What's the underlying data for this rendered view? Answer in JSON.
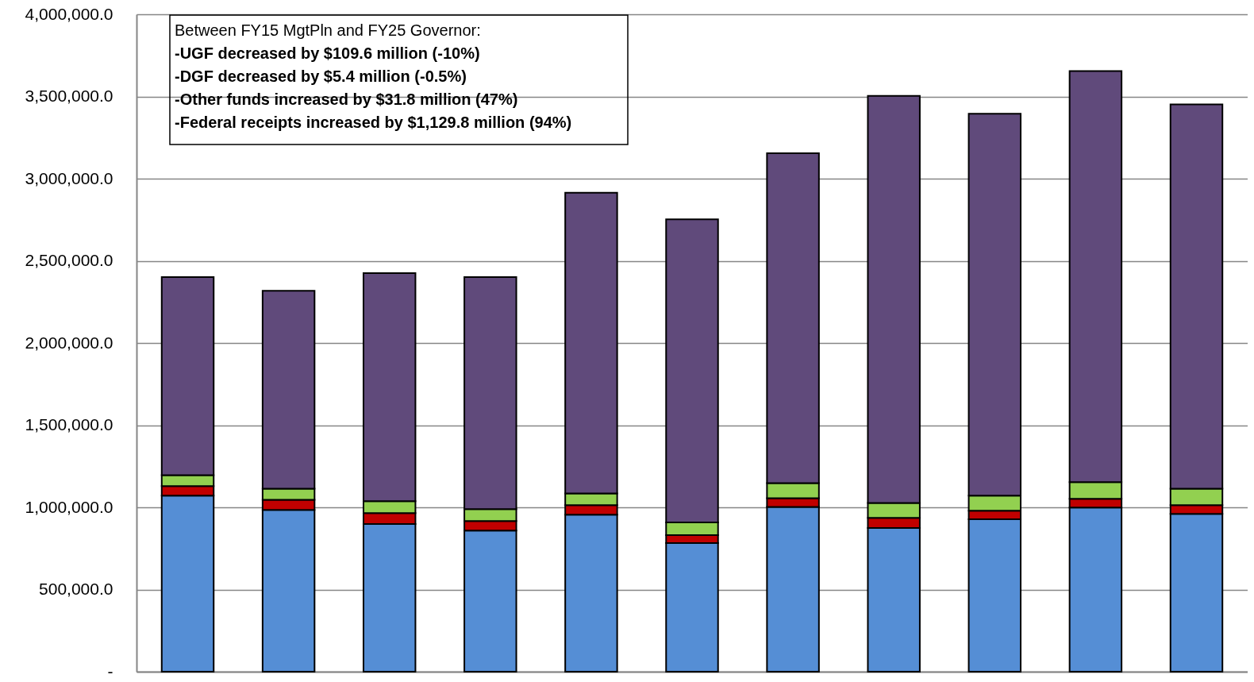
{
  "chart_data": {
    "type": "bar",
    "stacked": true,
    "categories": [
      null,
      null,
      null,
      null,
      null,
      null,
      null,
      null,
      null,
      null,
      null
    ],
    "series": [
      {
        "color": "#558ed5",
        "values": [
          1071000,
          984000,
          898000,
          859000,
          955000,
          783000,
          1003000,
          874000,
          927000,
          999000,
          960000
        ]
      },
      {
        "color": "#c00000",
        "values": [
          58000,
          62000,
          67000,
          58000,
          58000,
          48000,
          53000,
          62000,
          53000,
          53000,
          53000
        ]
      },
      {
        "color": "#92d050",
        "values": [
          67000,
          67000,
          72000,
          72000,
          72000,
          77000,
          91000,
          91000,
          91000,
          101000,
          101000
        ]
      },
      {
        "color": "#604a7b",
        "values": [
          1205000,
          1205000,
          1388000,
          1412000,
          1829000,
          1844000,
          2007000,
          2477000,
          2324000,
          2501000,
          2338000
        ]
      }
    ],
    "ylim": [
      0,
      4000000
    ],
    "yticks": [
      {
        "value": 0,
        "label": "-"
      },
      {
        "value": 500000,
        "label": "500,000.0"
      },
      {
        "value": 1000000,
        "label": "1,000,000.0"
      },
      {
        "value": 1500000,
        "label": "1,500,000.0"
      },
      {
        "value": 2000000,
        "label": "2,000,000.0"
      },
      {
        "value": 2500000,
        "label": "2,500,000.0"
      },
      {
        "value": 3000000,
        "label": "3,000,000.0"
      },
      {
        "value": 3500000,
        "label": "3,500,000.0"
      },
      {
        "value": 4000000,
        "label": "4,000,000.0"
      }
    ],
    "grid": "y",
    "tick_labels": "y",
    "annotations": [
      "Between FY15 MgtPln and FY25 Governor:",
      "-UGF decreased by $109.6 million (-10%)",
      "-DGF decreased by $5.4 million (-0.5%)",
      "-Other funds increased by $31.8 million (47%)",
      "-Federal receipts increased by $1,129.8 million (94%)"
    ]
  }
}
